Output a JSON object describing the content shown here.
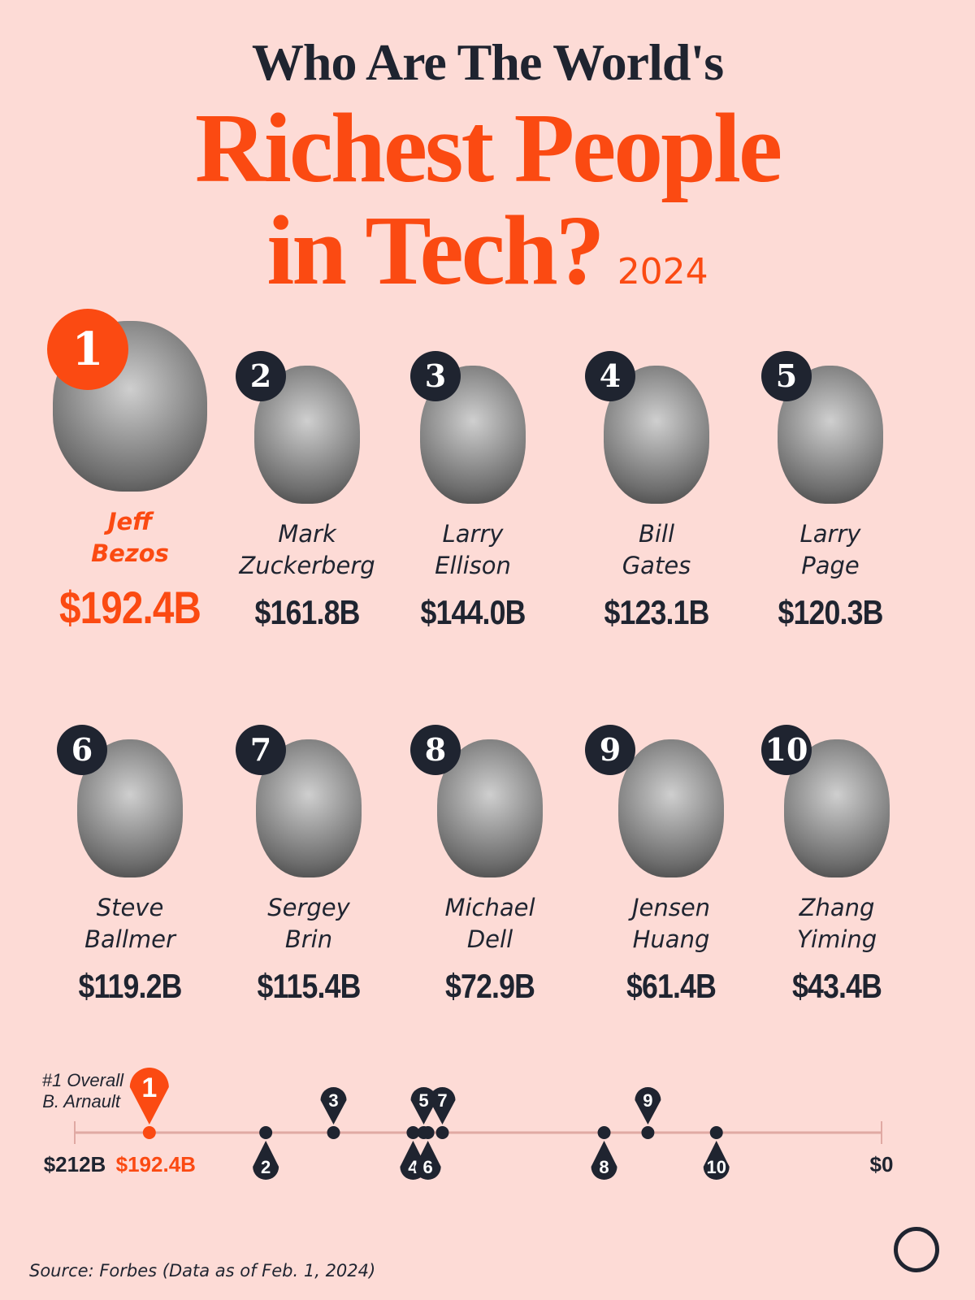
{
  "title": {
    "line1": "Who Are The World's",
    "line2": "Richest People",
    "line3": "in Tech?",
    "year": "2024"
  },
  "people": [
    {
      "rank": "1",
      "first": "Jeff",
      "last": "Bezos",
      "worth": "$192.4B"
    },
    {
      "rank": "2",
      "first": "Mark",
      "last": "Zuckerberg",
      "worth": "$161.8B"
    },
    {
      "rank": "3",
      "first": "Larry",
      "last": "Ellison",
      "worth": "$144.0B"
    },
    {
      "rank": "4",
      "first": "Bill",
      "last": "Gates",
      "worth": "$123.1B"
    },
    {
      "rank": "5",
      "first": "Larry",
      "last": "Page",
      "worth": "$120.3B"
    },
    {
      "rank": "6",
      "first": "Steve",
      "last": "Ballmer",
      "worth": "$119.2B"
    },
    {
      "rank": "7",
      "first": "Sergey",
      "last": "Brin",
      "worth": "$115.4B"
    },
    {
      "rank": "8",
      "first": "Michael",
      "last": "Dell",
      "worth": "$72.9B"
    },
    {
      "rank": "9",
      "first": "Jensen",
      "last": "Huang",
      "worth": "$61.4B"
    },
    {
      "rank": "10",
      "first": "Zhang",
      "last": "Yiming",
      "worth": "$43.4B"
    }
  ],
  "chart_data": {
    "type": "scatter",
    "axis_min_label": "$212B",
    "axis_max_label": "$0",
    "xlim": [
      212,
      0
    ],
    "annotation": {
      "line1": "#1 Overall",
      "line2": "B. Arnault"
    },
    "highlight_label": "$192.4B",
    "points": [
      {
        "rank": "1",
        "value": 192.4
      },
      {
        "rank": "2",
        "value": 161.8
      },
      {
        "rank": "3",
        "value": 144.0
      },
      {
        "rank": "4",
        "value": 123.1
      },
      {
        "rank": "5",
        "value": 120.3
      },
      {
        "rank": "6",
        "value": 119.2
      },
      {
        "rank": "7",
        "value": 115.4
      },
      {
        "rank": "8",
        "value": 72.9
      },
      {
        "rank": "9",
        "value": 61.4
      },
      {
        "rank": "10",
        "value": 43.4
      }
    ],
    "colors": {
      "highlight": "#fb4a12",
      "default": "#1f2430",
      "axis": "#e0a9a3"
    }
  },
  "source": "Source: Forbes (Data as of Feb. 1, 2024)"
}
